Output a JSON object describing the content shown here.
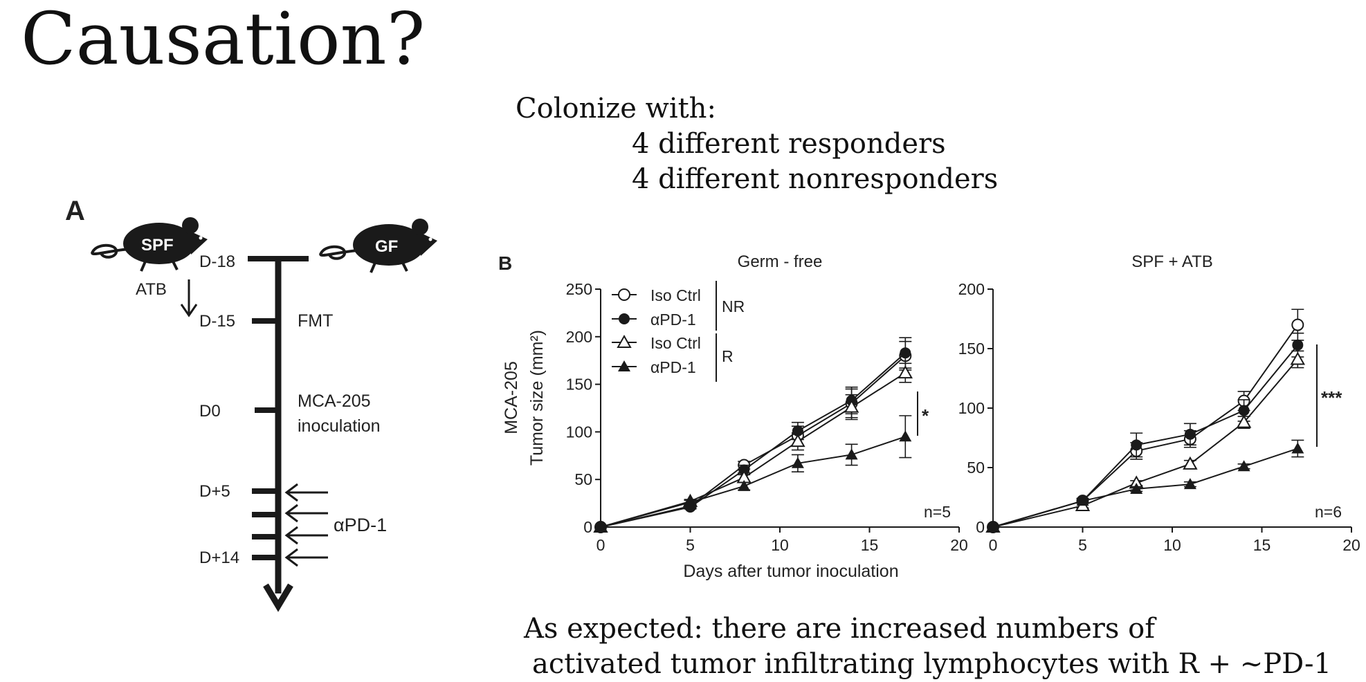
{
  "title": "Causation?",
  "colonize": {
    "heading": "Colonize with:",
    "lines": [
      "4 different responders",
      "4 different nonresponders"
    ]
  },
  "bottom_note": {
    "lines": [
      "As expected: there are increased numbers of",
      "activated tumor infiltrating lymphocytes with R + ~PD-1"
    ]
  },
  "panel_a": {
    "label": "A",
    "mouse_left": "SPF",
    "mouse_right": "GF",
    "atb_label": "ATB",
    "ticks": [
      "D-18",
      "D-15",
      "D0",
      "D+5",
      "D+14"
    ],
    "events": {
      "fmt": "FMT",
      "mca_line1": "MCA-205",
      "mca_line2": "inoculation",
      "antibody": "αPD-1"
    },
    "colors": {
      "ink": "#1a1a1a"
    }
  },
  "panel_b": {
    "label": "B",
    "ylabel_line1": "MCA-205",
    "ylabel_line2": "Tumor size (mm²)",
    "xlabel": "Days after tumor inoculation",
    "legend": {
      "nr_label": "NR",
      "r_label": "R",
      "items": [
        "Iso Ctrl",
        "αPD-1",
        "Iso Ctrl",
        "αPD-1"
      ]
    }
  },
  "chart_data": [
    {
      "type": "line",
      "title": "Germ - free",
      "xlabel": "Days after tumor inoculation",
      "ylabel": "MCA-205 Tumor size (mm²)",
      "x": [
        0,
        5,
        8,
        11,
        14,
        17
      ],
      "xlim": [
        0,
        20
      ],
      "ylim": [
        0,
        250
      ],
      "xticks": [
        "0",
        "5",
        "10",
        "15",
        "20"
      ],
      "yticks": [
        "0",
        "50",
        "100",
        "150",
        "200",
        "250"
      ],
      "series": [
        {
          "name": "Iso Ctrl (NR)",
          "marker": "open-circle",
          "values": [
            0,
            22,
            65,
            96,
            130,
            180
          ],
          "errors": [
            0,
            2,
            4,
            10,
            15,
            15
          ]
        },
        {
          "name": "αPD-1 (NR)",
          "marker": "filled-circle",
          "values": [
            0,
            21,
            60,
            101,
            133,
            183
          ],
          "errors": [
            0,
            2,
            5,
            9,
            14,
            16
          ]
        },
        {
          "name": "Iso Ctrl (R)",
          "marker": "open-triangle",
          "values": [
            0,
            27,
            52,
            90,
            126,
            162
          ],
          "errors": [
            0,
            2,
            5,
            9,
            13,
            10
          ]
        },
        {
          "name": "αPD-1 (R)",
          "marker": "filled-triangle",
          "values": [
            0,
            26,
            43,
            67,
            76,
            95
          ],
          "errors": [
            0,
            2,
            4,
            9,
            11,
            22
          ]
        }
      ],
      "annotation": "*",
      "n_label": "n=5"
    },
    {
      "type": "line",
      "title": "SPF + ATB",
      "x": [
        0,
        5,
        8,
        11,
        14,
        17
      ],
      "xlim": [
        0,
        20
      ],
      "ylim": [
        0,
        200
      ],
      "xticks": [
        "0",
        "5",
        "10",
        "15",
        "20"
      ],
      "yticks": [
        "0",
        "50",
        "100",
        "150",
        "200"
      ],
      "series": [
        {
          "name": "Iso Ctrl (NR)",
          "marker": "open-circle",
          "values": [
            0,
            22,
            64,
            74,
            106,
            170
          ],
          "errors": [
            0,
            2,
            7,
            7,
            8,
            13
          ]
        },
        {
          "name": "αPD-1 (NR)",
          "marker": "filled-circle",
          "values": [
            0,
            22,
            69,
            78,
            98,
            153
          ],
          "errors": [
            0,
            2,
            10,
            9,
            9,
            10
          ]
        },
        {
          "name": "Iso Ctrl (R)",
          "marker": "open-triangle",
          "values": [
            0,
            18,
            37,
            53,
            88,
            141
          ],
          "errors": [
            0,
            2,
            2,
            3,
            5,
            7
          ]
        },
        {
          "name": "αPD-1 (R)",
          "marker": "filled-triangle",
          "values": [
            0,
            22,
            32,
            36,
            51,
            66
          ],
          "errors": [
            0,
            2,
            2,
            2,
            2,
            7
          ]
        }
      ],
      "annotation": "***",
      "n_label": "n=6"
    }
  ]
}
